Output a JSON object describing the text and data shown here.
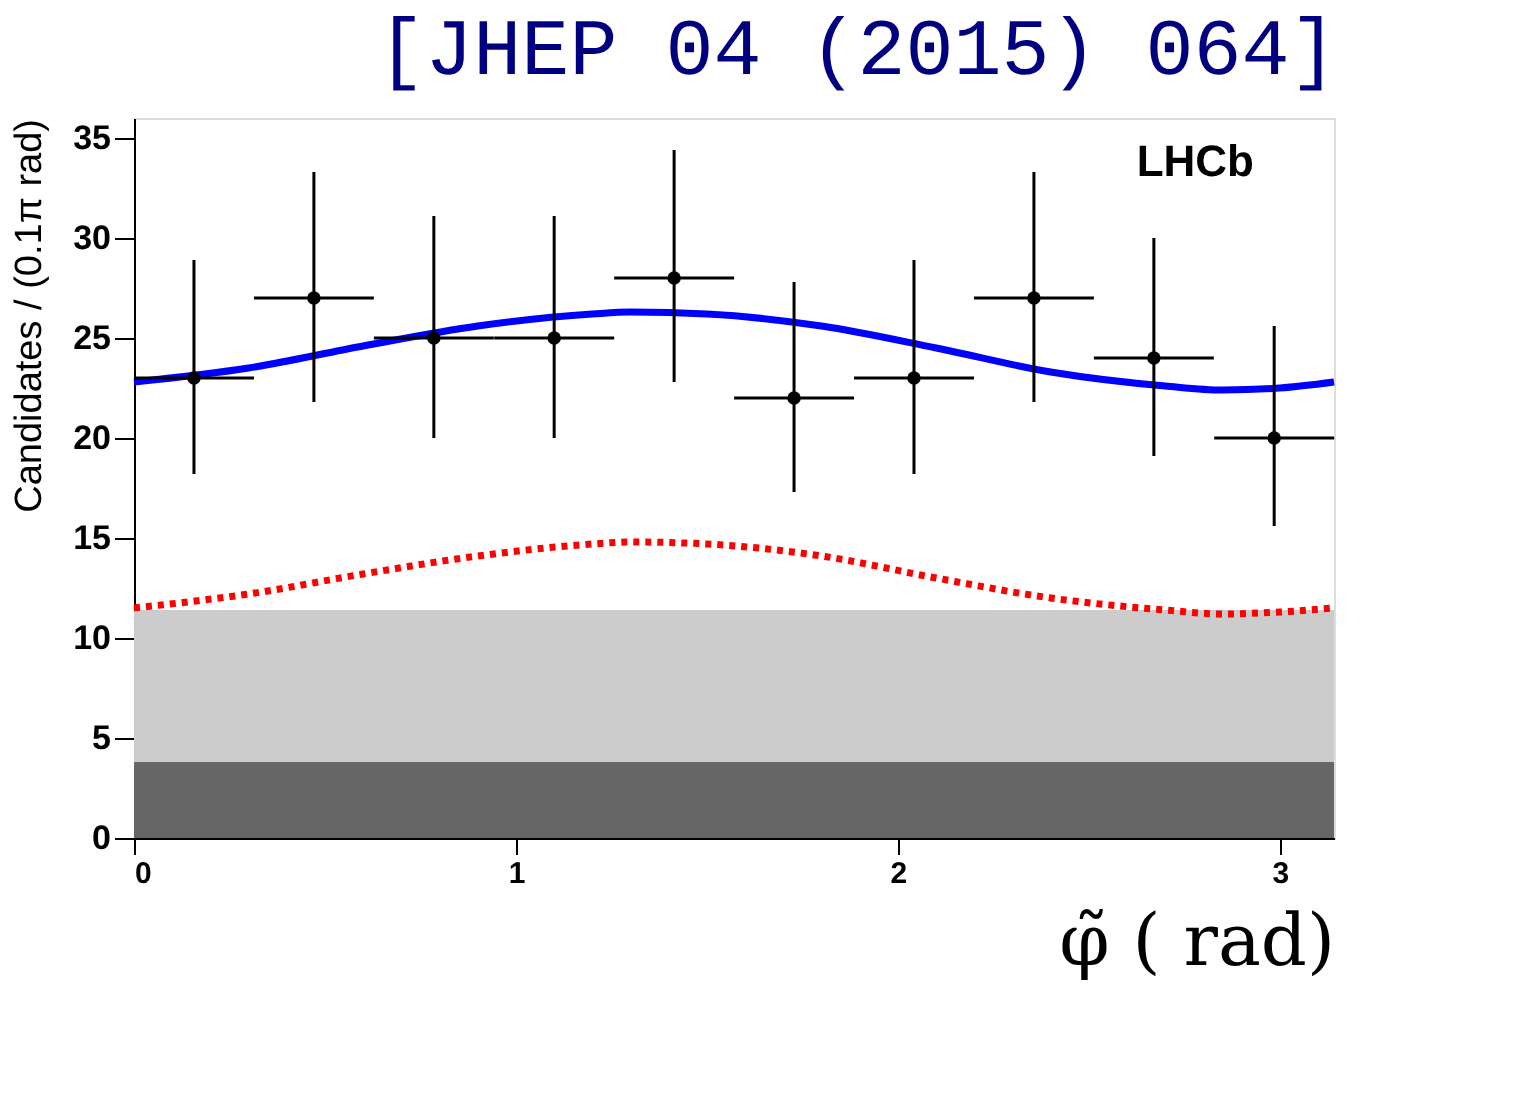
{
  "chart_data": {
    "type": "scatter",
    "title": "[JHEP 04 (2015) 064]",
    "xlabel": "φ̃ ( rad)",
    "ylabel": "Candidates / (0.1π rad)",
    "annotations": [
      "LHCb"
    ],
    "xlim": [
      0,
      3.1416
    ],
    "xticks": [
      0,
      1,
      2,
      3
    ],
    "ylim": [
      0,
      36
    ],
    "yticks": [
      0,
      5,
      10,
      15,
      20,
      25,
      30,
      35
    ],
    "grid": false,
    "bands": [
      {
        "axis": "y",
        "from": 0,
        "to": 3.8,
        "color": "#666666"
      },
      {
        "axis": "y",
        "from": 3.8,
        "to": 11.4,
        "color": "#cccccc"
      }
    ],
    "series": [
      {
        "color": "#000000",
        "marker": "circle",
        "x": [
          0.157,
          0.471,
          0.785,
          1.1,
          1.414,
          1.728,
          2.042,
          2.356,
          2.67,
          2.985
        ],
        "values": [
          23,
          27,
          25,
          25,
          28,
          22,
          23,
          27,
          24,
          20
        ],
        "errors": [
          [
            18.2,
            28.9
          ],
          [
            21.8,
            33.3
          ],
          [
            20,
            31.1
          ],
          [
            20,
            31.1
          ],
          [
            22.8,
            34.4
          ],
          [
            17.3,
            27.8
          ],
          [
            18.2,
            28.9
          ],
          [
            21.8,
            33.3
          ],
          [
            19.1,
            30
          ],
          [
            15.6,
            25.6
          ]
        ],
        "xerrors": [
          0.157,
          0.157,
          0.157,
          0.157,
          0.157,
          0.157,
          0.157,
          0.157,
          0.157,
          0.157
        ]
      },
      {
        "type": "line",
        "color": "#0000ff",
        "line_style": "solid",
        "x": [
          0,
          0.3,
          0.6,
          0.9,
          1.2,
          1.3,
          1.5,
          1.8,
          2.1,
          2.4,
          2.7,
          2.85,
          3.0,
          3.1416
        ],
        "values": [
          22.8,
          23.5,
          24.6,
          25.6,
          26.2,
          26.3,
          26.2,
          25.6,
          24.5,
          23.3,
          22.6,
          22.4,
          22.5,
          22.8
        ]
      },
      {
        "type": "line",
        "color": "#ff0000",
        "line_style": "dotted",
        "x": [
          0,
          0.3,
          0.6,
          0.9,
          1.2,
          1.3,
          1.5,
          1.8,
          2.1,
          2.4,
          2.7,
          2.85,
          3.0,
          3.1416
        ],
        "values": [
          11.5,
          12.2,
          13.2,
          14.1,
          14.7,
          14.8,
          14.7,
          14.1,
          13.0,
          12.0,
          11.4,
          11.2,
          11.3,
          11.5
        ]
      }
    ]
  }
}
